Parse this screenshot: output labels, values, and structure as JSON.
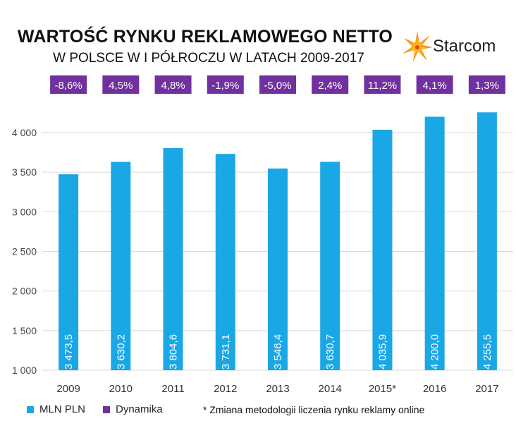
{
  "chart_data": {
    "type": "bar",
    "title": "WARTOŚĆ RYNKU REKLAMOWEGO NETTO",
    "subtitle": "W POLSCE W I PÓŁROCZU W LATACH 2009-2017",
    "categories": [
      "2009",
      "2010",
      "2011",
      "2012",
      "2013",
      "2014",
      "2015*",
      "2016",
      "2017"
    ],
    "series": [
      {
        "name": "MLN PLN",
        "values": [
          3473.5,
          3630.2,
          3804.6,
          3731.1,
          3546.4,
          3630.7,
          4035.9,
          4200.0,
          4255.5
        ],
        "labels": [
          "3 473,5",
          "3 630,2",
          "3 804,6",
          "3 731,1",
          "3 546,4",
          "3 630,7",
          "4 035,9",
          "4 200,0",
          "4 255,5"
        ],
        "color": "#1aa7e6"
      },
      {
        "name": "Dynamika",
        "values": [
          -8.6,
          4.5,
          4.8,
          -1.9,
          -5.0,
          2.4,
          11.2,
          4.1,
          1.3
        ],
        "labels": [
          "-8,6%",
          "4,5%",
          "4,8%",
          "-1,9%",
          "-5,0%",
          "2,4%",
          "11,2%",
          "4,1%",
          "1,3%"
        ],
        "color": "#7030a0"
      }
    ],
    "ylim": [
      1000,
      4300
    ],
    "yticks": [
      1000,
      1500,
      2000,
      2500,
      3000,
      3500,
      4000
    ],
    "ytick_labels": [
      "1 000",
      "1 500",
      "2 000",
      "2 500",
      "3 000",
      "3 500",
      "4 000"
    ],
    "grid": true,
    "xlabel": "",
    "ylabel": "",
    "footnote": "* Zmiana metodologii liczenia rynku reklamy online",
    "legend_position": "bottom"
  },
  "brand": {
    "name": "Starcom",
    "icon": "starburst-icon",
    "colors": {
      "star_orange": "#f7941d",
      "star_yellow": "#fdb913",
      "star_red": "#e8412c"
    }
  }
}
